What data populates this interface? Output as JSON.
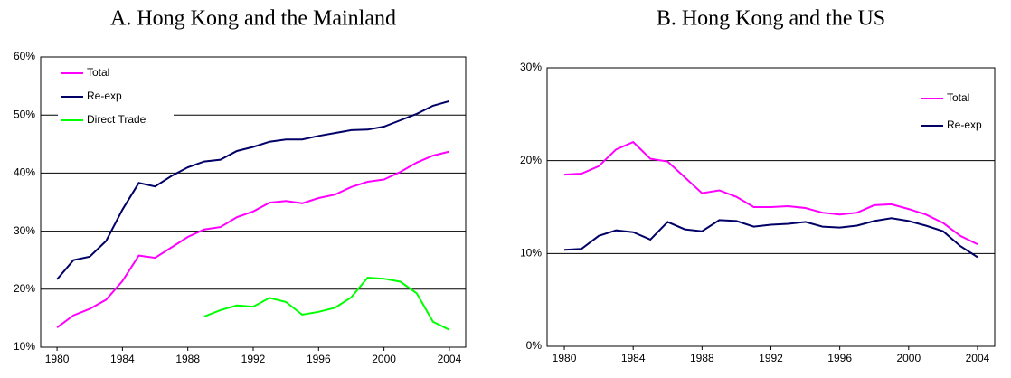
{
  "chart_data": [
    {
      "type": "line",
      "title": "A. Hong Kong and the Mainland",
      "x": [
        1980,
        1981,
        1982,
        1983,
        1984,
        1985,
        1986,
        1987,
        1988,
        1989,
        1990,
        1991,
        1992,
        1993,
        1994,
        1995,
        1996,
        1997,
        1998,
        1999,
        2000,
        2001,
        2002,
        2003,
        2004
      ],
      "series": [
        {
          "name": "Total",
          "color": "#ff00ff",
          "values": [
            13.4,
            15.5,
            16.6,
            18.2,
            21.4,
            25.8,
            25.4,
            27.2,
            29.0,
            30.3,
            30.7,
            32.4,
            33.4,
            34.9,
            35.2,
            34.8,
            35.7,
            36.3,
            37.6,
            38.5,
            38.9,
            40.2,
            41.8,
            43.0,
            43.7
          ]
        },
        {
          "name": "Re-exp",
          "color": "#000066",
          "values": [
            21.7,
            25.0,
            25.6,
            28.3,
            33.7,
            38.3,
            37.7,
            39.5,
            41.0,
            42.0,
            42.3,
            43.8,
            44.5,
            45.4,
            45.8,
            45.8,
            46.4,
            46.9,
            47.4,
            47.5,
            48.0,
            49.1,
            50.2,
            51.6,
            52.4
          ]
        },
        {
          "name": "Direct Trade",
          "color": "#00ff00",
          "values": [
            null,
            null,
            null,
            null,
            null,
            null,
            null,
            null,
            null,
            15.3,
            16.4,
            17.2,
            17.0,
            18.5,
            17.8,
            15.6,
            16.1,
            16.8,
            18.6,
            22.0,
            21.8,
            21.3,
            19.3,
            14.4,
            13.0
          ]
        }
      ],
      "xlim": [
        1979,
        2005
      ],
      "xticks": [
        1980,
        1984,
        1988,
        1992,
        1996,
        2000,
        2004
      ],
      "ylim": [
        10,
        60
      ],
      "yticks": [
        {
          "value": 10,
          "label": "10%"
        },
        {
          "value": 20,
          "label": "20%"
        },
        {
          "value": 30,
          "label": "30%"
        },
        {
          "value": 40,
          "label": "40%"
        },
        {
          "value": 50,
          "label": "50%"
        },
        {
          "value": 60,
          "label": "60%"
        }
      ],
      "grid": true,
      "legend": "upper left"
    },
    {
      "type": "line",
      "title": "B. Hong Kong and the US",
      "x": [
        1980,
        1981,
        1982,
        1983,
        1984,
        1985,
        1986,
        1987,
        1988,
        1989,
        1990,
        1991,
        1992,
        1993,
        1994,
        1995,
        1996,
        1997,
        1998,
        1999,
        2000,
        2001,
        2002,
        2003,
        2004
      ],
      "series": [
        {
          "name": "Total",
          "color": "#ff00ff",
          "values": [
            18.5,
            18.6,
            19.4,
            21.2,
            22.0,
            20.2,
            19.9,
            18.2,
            16.5,
            16.8,
            16.1,
            15.0,
            15.0,
            15.1,
            14.9,
            14.4,
            14.2,
            14.4,
            15.2,
            15.3,
            14.8,
            14.2,
            13.3,
            11.9,
            11.0
          ]
        },
        {
          "name": "Re-exp",
          "color": "#000066",
          "values": [
            10.4,
            10.5,
            11.9,
            12.5,
            12.3,
            11.5,
            13.4,
            12.6,
            12.4,
            13.6,
            13.5,
            12.9,
            13.1,
            13.2,
            13.4,
            12.9,
            12.8,
            13.0,
            13.5,
            13.8,
            13.5,
            13.0,
            12.4,
            10.8,
            9.6
          ]
        }
      ],
      "xlim": [
        1979,
        2005
      ],
      "xticks": [
        1980,
        1984,
        1988,
        1992,
        1996,
        2000,
        2004
      ],
      "ylim": [
        0,
        30
      ],
      "yticks": [
        {
          "value": 0,
          "label": "0%"
        },
        {
          "value": 10,
          "label": "10%"
        },
        {
          "value": 20,
          "label": "20%"
        },
        {
          "value": 30,
          "label": "30%"
        }
      ],
      "grid": true,
      "legend": "upper right"
    }
  ]
}
